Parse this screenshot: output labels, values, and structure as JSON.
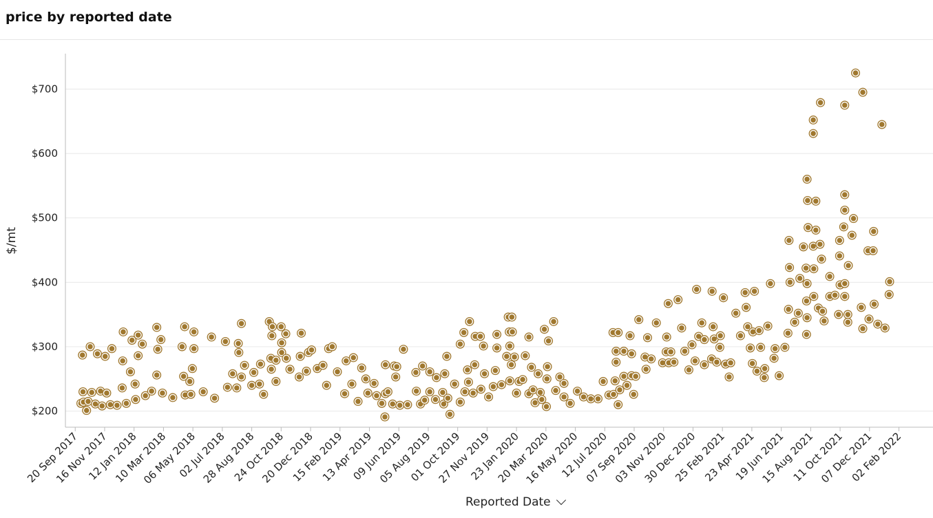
{
  "title": "price by reported date",
  "colors": {
    "marker_fill": "#A0782F",
    "marker_ring": "#FFFFFF",
    "marker_outer": "#A0782F",
    "grid": "#e8e8e8",
    "axis": "#bbbbbb"
  },
  "chart_data": {
    "type": "scatter",
    "title": "price by reported date",
    "xlabel": "Reported Date",
    "ylabel": "$/mt",
    "ylim": [
      175,
      755
    ],
    "xlim": [
      "2017-09-01",
      "2022-03-20"
    ],
    "grid": "horizontal",
    "y_ticks": [
      200,
      300,
      400,
      500,
      600,
      700
    ],
    "y_tick_labels": [
      "$200",
      "$300",
      "$400",
      "$500",
      "$600",
      "$700"
    ],
    "x_ticks": [
      "2017-09-20",
      "2017-11-16",
      "2018-01-12",
      "2018-03-10",
      "2018-05-06",
      "2018-07-02",
      "2018-08-28",
      "2018-10-24",
      "2018-12-20",
      "2019-02-15",
      "2019-04-13",
      "2019-06-09",
      "2019-08-05",
      "2019-10-01",
      "2019-11-27",
      "2020-01-23",
      "2020-03-20",
      "2020-05-16",
      "2020-07-12",
      "2020-09-07",
      "2020-11-03",
      "2020-12-30",
      "2021-02-25",
      "2021-04-23",
      "2021-06-19",
      "2021-08-15",
      "2021-10-11",
      "2021-12-07",
      "2022-02-02"
    ],
    "x_tick_labels": [
      "20 Sep 2017",
      "16 Nov 2017",
      "12 Jan 2018",
      "10 Mar 2018",
      "06 May 2018",
      "02 Jul 2018",
      "28 Aug 2018",
      "24 Oct 2018",
      "20 Dec 2018",
      "15 Feb 2019",
      "13 Apr 2019",
      "09 Jun 2019",
      "05 Aug 2019",
      "01 Oct 2019",
      "27 Nov 2019",
      "23 Jan 2020",
      "20 Mar 2020",
      "16 May 2020",
      "12 Jul 2020",
      "07 Sep 2020",
      "03 Nov 2020",
      "30 Dec 2020",
      "25 Feb 2021",
      "23 Apr 2021",
      "19 Jun 2021",
      "15 Aug 2021",
      "11 Oct 2021",
      "07 Dec 2021",
      "02 Feb 2022"
    ],
    "points": [
      [
        "2017-10-01",
        212
      ],
      [
        "2017-10-04",
        287
      ],
      [
        "2017-10-05",
        230
      ],
      [
        "2017-10-06",
        214
      ],
      [
        "2017-10-12",
        201
      ],
      [
        "2017-10-15",
        215
      ],
      [
        "2017-10-19",
        300
      ],
      [
        "2017-10-22",
        229
      ],
      [
        "2017-10-29",
        211
      ],
      [
        "2017-11-02",
        289
      ],
      [
        "2017-11-08",
        231
      ],
      [
        "2017-11-11",
        208
      ],
      [
        "2017-11-17",
        285
      ],
      [
        "2017-11-20",
        228
      ],
      [
        "2017-11-27",
        210
      ],
      [
        "2017-11-30",
        297
      ],
      [
        "2017-12-10",
        209
      ],
      [
        "2017-12-20",
        236
      ],
      [
        "2017-12-21",
        278
      ],
      [
        "2017-12-22",
        323
      ],
      [
        "2017-12-28",
        212
      ],
      [
        "2018-01-05",
        261
      ],
      [
        "2018-01-08",
        310
      ],
      [
        "2018-01-14",
        242
      ],
      [
        "2018-01-15",
        218
      ],
      [
        "2018-01-20",
        318
      ],
      [
        "2018-01-20",
        286
      ],
      [
        "2018-01-28",
        304
      ],
      [
        "2018-02-03",
        224
      ],
      [
        "2018-02-15",
        231
      ],
      [
        "2018-02-25",
        330
      ],
      [
        "2018-02-25",
        256
      ],
      [
        "2018-02-27",
        296
      ],
      [
        "2018-03-05",
        311
      ],
      [
        "2018-03-08",
        228
      ],
      [
        "2018-03-28",
        221
      ],
      [
        "2018-04-15",
        300
      ],
      [
        "2018-04-18",
        254
      ],
      [
        "2018-04-20",
        331
      ],
      [
        "2018-04-21",
        225
      ],
      [
        "2018-04-30",
        246
      ],
      [
        "2018-05-02",
        226
      ],
      [
        "2018-05-05",
        266
      ],
      [
        "2018-05-08",
        323
      ],
      [
        "2018-05-08",
        297
      ],
      [
        "2018-05-26",
        230
      ],
      [
        "2018-06-11",
        315
      ],
      [
        "2018-06-17",
        220
      ],
      [
        "2018-07-08",
        308
      ],
      [
        "2018-07-12",
        237
      ],
      [
        "2018-07-22",
        258
      ],
      [
        "2018-07-30",
        236
      ],
      [
        "2018-08-02",
        305
      ],
      [
        "2018-08-03",
        291
      ],
      [
        "2018-08-08",
        253
      ],
      [
        "2018-08-08",
        336
      ],
      [
        "2018-08-14",
        271
      ],
      [
        "2018-08-28",
        240
      ],
      [
        "2018-09-01",
        260
      ],
      [
        "2018-09-12",
        242
      ],
      [
        "2018-09-14",
        273
      ],
      [
        "2018-09-20",
        226
      ],
      [
        "2018-10-01",
        339
      ],
      [
        "2018-10-04",
        282
      ],
      [
        "2018-10-05",
        265
      ],
      [
        "2018-10-06",
        317
      ],
      [
        "2018-10-07",
        331
      ],
      [
        "2018-10-14",
        246
      ],
      [
        "2018-10-14",
        279
      ],
      [
        "2018-10-24",
        331
      ],
      [
        "2018-10-25",
        306
      ],
      [
        "2018-10-25",
        291
      ],
      [
        "2018-11-02",
        320
      ],
      [
        "2018-11-03",
        282
      ],
      [
        "2018-11-10",
        265
      ],
      [
        "2018-11-28",
        253
      ],
      [
        "2018-11-30",
        285
      ],
      [
        "2018-12-02",
        321
      ],
      [
        "2018-12-12",
        262
      ],
      [
        "2018-12-16",
        291
      ],
      [
        "2018-12-22",
        295
      ],
      [
        "2019-01-02",
        266
      ],
      [
        "2019-01-13",
        271
      ],
      [
        "2019-01-20",
        240
      ],
      [
        "2019-01-24",
        297
      ],
      [
        "2019-01-31",
        300
      ],
      [
        "2019-02-10",
        261
      ],
      [
        "2019-02-24",
        227
      ],
      [
        "2019-02-27",
        278
      ],
      [
        "2019-03-10",
        242
      ],
      [
        "2019-03-13",
        283
      ],
      [
        "2019-03-22",
        215
      ],
      [
        "2019-03-29",
        267
      ],
      [
        "2019-04-06",
        250
      ],
      [
        "2019-04-10",
        228
      ],
      [
        "2019-04-22",
        243
      ],
      [
        "2019-04-27",
        224
      ],
      [
        "2019-05-07",
        212
      ],
      [
        "2019-05-13",
        191
      ],
      [
        "2019-05-14",
        272
      ],
      [
        "2019-05-14",
        227
      ],
      [
        "2019-05-19",
        230
      ],
      [
        "2019-05-28",
        211
      ],
      [
        "2019-05-31",
        270
      ],
      [
        "2019-06-03",
        253
      ],
      [
        "2019-06-05",
        269
      ],
      [
        "2019-06-11",
        209
      ],
      [
        "2019-06-18",
        296
      ],
      [
        "2019-06-26",
        210
      ],
      [
        "2019-07-12",
        260
      ],
      [
        "2019-07-13",
        231
      ],
      [
        "2019-07-21",
        211
      ],
      [
        "2019-07-25",
        270
      ],
      [
        "2019-07-29",
        217
      ],
      [
        "2019-08-08",
        261
      ],
      [
        "2019-08-08",
        230
      ],
      [
        "2019-08-19",
        218
      ],
      [
        "2019-08-21",
        252
      ],
      [
        "2019-09-02",
        229
      ],
      [
        "2019-09-04",
        211
      ],
      [
        "2019-09-06",
        258
      ],
      [
        "2019-09-10",
        285
      ],
      [
        "2019-09-12",
        220
      ],
      [
        "2019-09-16",
        195
      ],
      [
        "2019-09-25",
        242
      ],
      [
        "2019-10-06",
        304
      ],
      [
        "2019-10-06",
        214
      ],
      [
        "2019-10-13",
        322
      ],
      [
        "2019-10-15",
        230
      ],
      [
        "2019-10-20",
        264
      ],
      [
        "2019-10-22",
        245
      ],
      [
        "2019-10-24",
        339
      ],
      [
        "2019-10-31",
        228
      ],
      [
        "2019-11-03",
        272
      ],
      [
        "2019-11-04",
        316
      ],
      [
        "2019-11-14",
        316
      ],
      [
        "2019-11-15",
        234
      ],
      [
        "2019-11-20",
        301
      ],
      [
        "2019-11-22",
        258
      ],
      [
        "2019-11-30",
        222
      ],
      [
        "2019-12-09",
        238
      ],
      [
        "2019-12-13",
        263
      ],
      [
        "2019-12-16",
        319
      ],
      [
        "2019-12-16",
        298
      ],
      [
        "2019-12-25",
        241
      ],
      [
        "2020-01-04",
        285
      ],
      [
        "2020-01-07",
        346
      ],
      [
        "2020-01-09",
        323
      ],
      [
        "2020-01-10",
        301
      ],
      [
        "2020-01-10",
        247
      ],
      [
        "2020-01-13",
        272
      ],
      [
        "2020-01-14",
        346
      ],
      [
        "2020-01-15",
        323
      ],
      [
        "2020-01-19",
        284
      ],
      [
        "2020-01-23",
        228
      ],
      [
        "2020-01-28",
        246
      ],
      [
        "2020-02-04",
        249
      ],
      [
        "2020-02-09",
        286
      ],
      [
        "2020-02-16",
        227
      ],
      [
        "2020-02-16",
        315
      ],
      [
        "2020-02-21",
        268
      ],
      [
        "2020-02-24",
        233
      ],
      [
        "2020-02-28",
        213
      ],
      [
        "2020-03-05",
        258
      ],
      [
        "2020-03-09",
        229
      ],
      [
        "2020-03-12",
        218
      ],
      [
        "2020-03-17",
        327
      ],
      [
        "2020-03-21",
        207
      ],
      [
        "2020-03-22",
        250
      ],
      [
        "2020-03-23",
        269
      ],
      [
        "2020-03-25",
        309
      ],
      [
        "2020-04-04",
        339
      ],
      [
        "2020-04-08",
        232
      ],
      [
        "2020-04-16",
        253
      ],
      [
        "2020-04-24",
        243
      ],
      [
        "2020-04-24",
        222
      ],
      [
        "2020-05-06",
        212
      ],
      [
        "2020-05-20",
        231
      ],
      [
        "2020-06-01",
        222
      ],
      [
        "2020-06-15",
        219
      ],
      [
        "2020-06-29",
        219
      ],
      [
        "2020-07-09",
        246
      ],
      [
        "2020-07-20",
        225
      ],
      [
        "2020-07-28",
        322
      ],
      [
        "2020-07-29",
        226
      ],
      [
        "2020-08-01",
        247
      ],
      [
        "2020-08-03",
        276
      ],
      [
        "2020-08-03",
        293
      ],
      [
        "2020-08-07",
        322
      ],
      [
        "2020-08-07",
        210
      ],
      [
        "2020-08-10",
        233
      ],
      [
        "2020-08-18",
        293
      ],
      [
        "2020-08-18",
        254
      ],
      [
        "2020-08-24",
        240
      ],
      [
        "2020-08-30",
        317
      ],
      [
        "2020-09-02",
        255
      ],
      [
        "2020-09-02",
        289
      ],
      [
        "2020-09-06",
        226
      ],
      [
        "2020-09-10",
        254
      ],
      [
        "2020-09-16",
        342
      ],
      [
        "2020-09-28",
        284
      ],
      [
        "2020-09-30",
        265
      ],
      [
        "2020-10-03",
        314
      ],
      [
        "2020-10-10",
        281
      ],
      [
        "2020-10-20",
        337
      ],
      [
        "2020-11-01",
        275
      ],
      [
        "2020-11-08",
        292
      ],
      [
        "2020-11-09",
        315
      ],
      [
        "2020-11-12",
        367
      ],
      [
        "2020-11-13",
        275
      ],
      [
        "2020-11-17",
        292
      ],
      [
        "2020-11-23",
        276
      ],
      [
        "2020-12-01",
        373
      ],
      [
        "2020-12-08",
        329
      ],
      [
        "2020-12-14",
        293
      ],
      [
        "2020-12-22",
        264
      ],
      [
        "2020-12-28",
        303
      ],
      [
        "2021-01-03",
        278
      ],
      [
        "2021-01-06",
        389
      ],
      [
        "2021-01-10",
        316
      ],
      [
        "2021-01-16",
        337
      ],
      [
        "2021-01-21",
        272
      ],
      [
        "2021-01-21",
        311
      ],
      [
        "2021-02-04",
        281
      ],
      [
        "2021-02-05",
        386
      ],
      [
        "2021-02-07",
        331
      ],
      [
        "2021-02-09",
        312
      ],
      [
        "2021-02-14",
        276
      ],
      [
        "2021-02-20",
        299
      ],
      [
        "2021-02-21",
        317
      ],
      [
        "2021-02-27",
        376
      ],
      [
        "2021-03-03",
        273
      ],
      [
        "2021-03-10",
        253
      ],
      [
        "2021-03-13",
        275
      ],
      [
        "2021-03-23",
        352
      ],
      [
        "2021-04-01",
        317
      ],
      [
        "2021-04-10",
        384
      ],
      [
        "2021-04-12",
        361
      ],
      [
        "2021-04-15",
        331
      ],
      [
        "2021-04-20",
        298
      ],
      [
        "2021-04-24",
        274
      ],
      [
        "2021-04-25",
        323
      ],
      [
        "2021-04-28",
        386
      ],
      [
        "2021-05-03",
        262
      ],
      [
        "2021-05-07",
        325
      ],
      [
        "2021-05-10",
        299
      ],
      [
        "2021-05-17",
        252
      ],
      [
        "2021-05-18",
        266
      ],
      [
        "2021-05-24",
        332
      ],
      [
        "2021-05-29",
        398
      ],
      [
        "2021-06-05",
        282
      ],
      [
        "2021-06-07",
        297
      ],
      [
        "2021-06-15",
        255
      ],
      [
        "2021-06-26",
        299
      ],
      [
        "2021-07-02",
        321
      ],
      [
        "2021-07-03",
        358
      ],
      [
        "2021-07-04",
        465
      ],
      [
        "2021-07-05",
        423
      ],
      [
        "2021-07-06",
        400
      ],
      [
        "2021-07-15",
        338
      ],
      [
        "2021-07-22",
        352
      ],
      [
        "2021-07-25",
        406
      ],
      [
        "2021-08-01",
        455
      ],
      [
        "2021-08-06",
        422
      ],
      [
        "2021-08-07",
        371
      ],
      [
        "2021-08-07",
        319
      ],
      [
        "2021-08-08",
        345
      ],
      [
        "2021-08-08",
        398
      ],
      [
        "2021-08-08",
        560
      ],
      [
        "2021-08-09",
        527
      ],
      [
        "2021-08-10",
        485
      ],
      [
        "2021-08-21",
        378
      ],
      [
        "2021-08-20",
        652
      ],
      [
        "2021-08-20",
        631
      ],
      [
        "2021-08-20",
        456
      ],
      [
        "2021-08-21",
        421
      ],
      [
        "2021-08-25",
        481
      ],
      [
        "2021-08-25",
        526
      ],
      [
        "2021-08-30",
        360
      ],
      [
        "2021-09-02",
        459
      ],
      [
        "2021-09-03",
        679
      ],
      [
        "2021-09-05",
        436
      ],
      [
        "2021-09-07",
        355
      ],
      [
        "2021-09-10",
        340
      ],
      [
        "2021-09-21",
        409
      ],
      [
        "2021-09-21",
        378
      ],
      [
        "2021-10-01",
        380
      ],
      [
        "2021-10-08",
        350
      ],
      [
        "2021-10-10",
        441
      ],
      [
        "2021-10-10",
        465
      ],
      [
        "2021-10-11",
        396
      ],
      [
        "2021-10-18",
        486
      ],
      [
        "2021-10-20",
        536
      ],
      [
        "2021-10-20",
        512
      ],
      [
        "2021-10-20",
        398
      ],
      [
        "2021-10-20",
        378
      ],
      [
        "2021-10-20",
        675
      ],
      [
        "2021-10-26",
        350
      ],
      [
        "2021-10-26",
        338
      ],
      [
        "2021-10-27",
        426
      ],
      [
        "2021-11-03",
        473
      ],
      [
        "2021-11-06",
        499
      ],
      [
        "2021-11-10",
        725
      ],
      [
        "2021-11-21",
        361
      ],
      [
        "2021-11-24",
        328
      ],
      [
        "2021-11-24",
        695
      ],
      [
        "2021-12-04",
        449
      ],
      [
        "2021-12-06",
        343
      ],
      [
        "2021-12-14",
        449
      ],
      [
        "2021-12-15",
        479
      ],
      [
        "2021-12-16",
        366
      ],
      [
        "2021-12-23",
        335
      ],
      [
        "2021-12-31",
        645
      ],
      [
        "2022-01-06",
        329
      ],
      [
        "2022-01-14",
        381
      ],
      [
        "2022-01-15",
        401
      ]
    ]
  },
  "x_axis_button": {
    "label": "Reported Date",
    "icon": "chevron-down-icon"
  }
}
